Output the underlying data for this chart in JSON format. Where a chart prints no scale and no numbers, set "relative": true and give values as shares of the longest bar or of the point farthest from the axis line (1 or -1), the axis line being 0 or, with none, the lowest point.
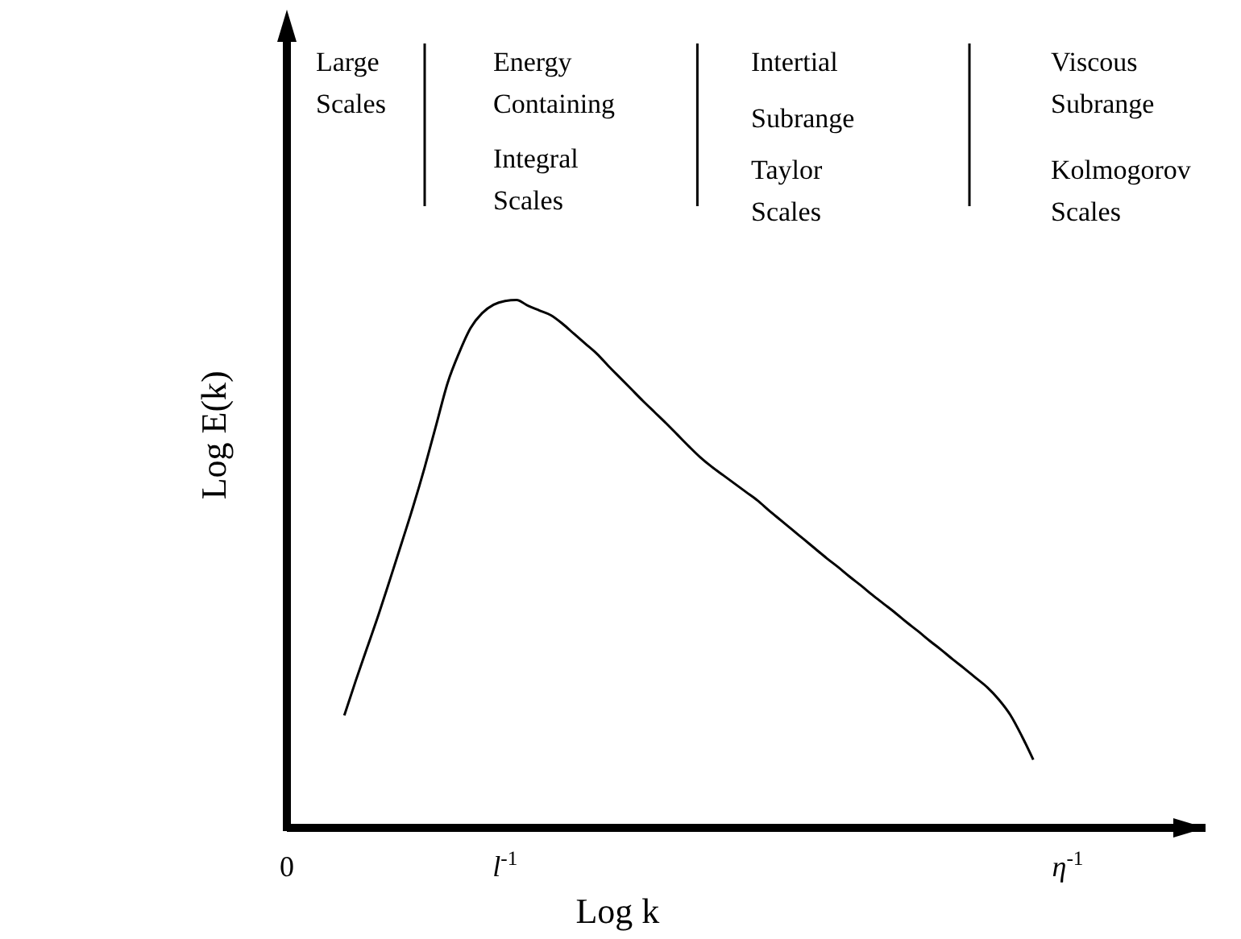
{
  "chart_data": {
    "type": "line",
    "relative": true,
    "xlabel": "Log k",
    "ylabel": "Log E(k)",
    "categories": [
      "0",
      null,
      null,
      null,
      null,
      null,
      null,
      null,
      null,
      null,
      null,
      null,
      null,
      null,
      null,
      null,
      null,
      null,
      null,
      "l$^{-1}$",
      null,
      null,
      null,
      null,
      null,
      null,
      null,
      null,
      null,
      null,
      null,
      null,
      null,
      null,
      null,
      null,
      null,
      null,
      null,
      null,
      null,
      null,
      null,
      null,
      null,
      null,
      null,
      null,
      null,
      null,
      null,
      null,
      null,
      null,
      null,
      null,
      null,
      null,
      null,
      null,
      null,
      null,
      null,
      null,
      null,
      null,
      null,
      null,
      "η$^{-1}$",
      null,
      null,
      null,
      null,
      null,
      null,
      null,
      null,
      null,
      null,
      null,
      null
    ],
    "series": [
      {
        "color": "#000000",
        "values": [
          null,
          null,
          null,
          null,
          null,
          0.213,
          0.279,
          0.342,
          0.405,
          0.472,
          0.54,
          0.609,
          0.683,
          0.763,
          0.843,
          0.9,
          0.947,
          0.975,
          0.991,
          0.998,
          1,
          0.989,
          0.98,
          0.971,
          0.955,
          0.936,
          0.917,
          0.898,
          0.875,
          0.853,
          0.831,
          0.809,
          0.788,
          0.767,
          0.745,
          0.723,
          0.702,
          0.684,
          0.668,
          0.652,
          0.636,
          0.62,
          0.601,
          0.583,
          0.565,
          0.547,
          0.529,
          0.511,
          0.494,
          0.476,
          0.459,
          0.441,
          0.424,
          0.407,
          0.389,
          0.372,
          0.354,
          0.337,
          0.319,
          0.302,
          0.284,
          0.266,
          0.243,
          0.214,
          0.174,
          0.129,
          null,
          null,
          null,
          null,
          null,
          null,
          null,
          null,
          null,
          null,
          null,
          null,
          null,
          null,
          null
        ]
      }
    ],
    "annotations": [
      "Large\nScales",
      "Energy\nContaining",
      "Integral\nScales",
      "Intertial",
      "Subrange",
      "Taylor\nScales",
      "Viscous\nSubrange",
      "Kolmogorov\nScales"
    ]
  }
}
